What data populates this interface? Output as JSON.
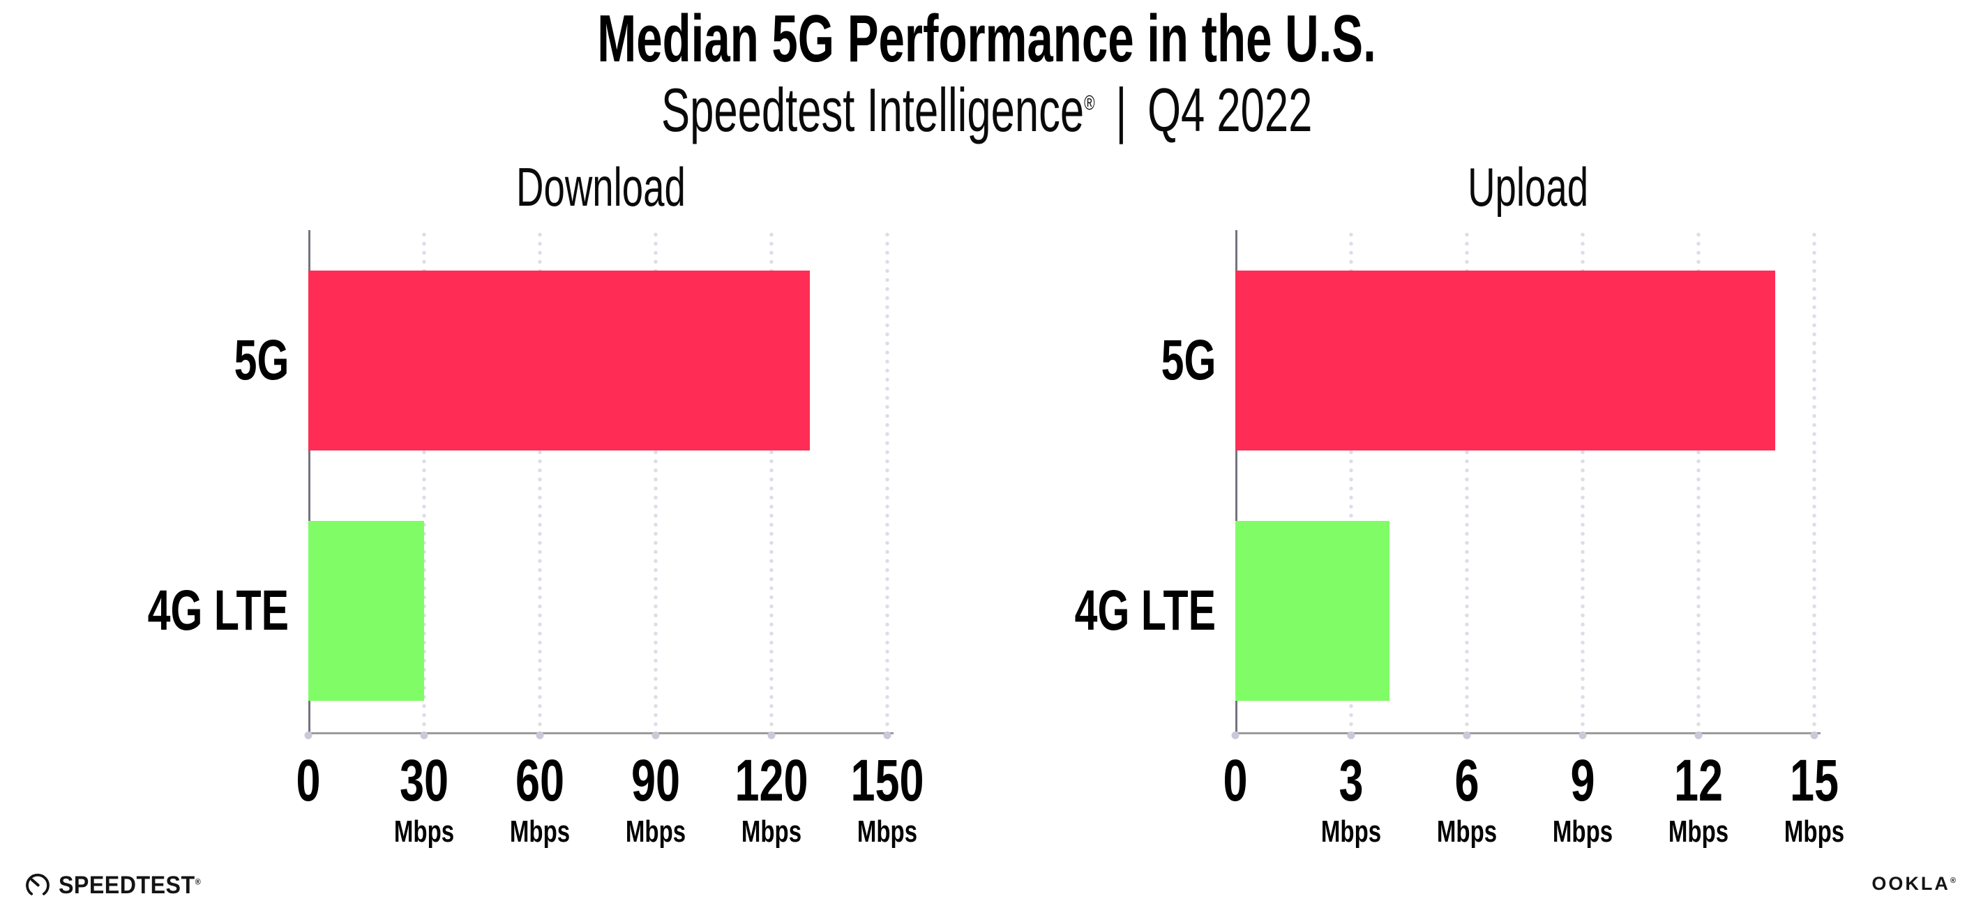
{
  "header": {
    "title": "Median 5G Performance in the U.S.",
    "subtitle_brand": "Speedtest Intelligence",
    "subtitle_reg": "®",
    "subtitle_separator": "|",
    "subtitle_period": "Q4 2022"
  },
  "chart_data": [
    {
      "type": "bar",
      "orientation": "horizontal",
      "title": "Download",
      "categories": [
        "5G",
        "4G LTE"
      ],
      "values": [
        130,
        30
      ],
      "unit": "Mbps",
      "xlabel": "",
      "ylabel": "",
      "ticks": [
        0,
        30,
        60,
        90,
        120,
        150
      ],
      "xlim": [
        0,
        151.7
      ],
      "grid": "dotted-vertical",
      "bar_colors": [
        "#ff2d55",
        "#80fc66"
      ]
    },
    {
      "type": "bar",
      "orientation": "horizontal",
      "title": "Upload",
      "categories": [
        "5G",
        "4G LTE"
      ],
      "values": [
        14,
        4
      ],
      "unit": "Mbps",
      "xlabel": "",
      "ylabel": "",
      "ticks": [
        0,
        3,
        6,
        9,
        12,
        15
      ],
      "xlim": [
        0,
        15.17
      ],
      "grid": "dotted-vertical",
      "bar_colors": [
        "#ff2d55",
        "#80fc66"
      ]
    }
  ],
  "colors": {
    "bar_5g": "#ff2d55",
    "bar_4g_lte": "#80fc66",
    "gridline_dot": "#dcdde8",
    "axis_bottom": "#9b9b9b",
    "axis_left": "#75737e",
    "tick_dot": "#c9cad8",
    "text": "#000000"
  },
  "footer": {
    "speedtest_label": "SPEEDTEST",
    "speedtest_reg": "®",
    "ookla_label": "OOKLA",
    "ookla_reg": "®"
  }
}
